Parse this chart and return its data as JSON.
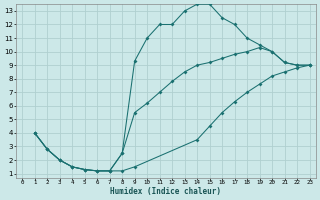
{
  "xlabel": "Humidex (Indice chaleur)",
  "xlim": [
    -0.5,
    23.5
  ],
  "ylim": [
    0.7,
    13.5
  ],
  "xticks": [
    0,
    1,
    2,
    3,
    4,
    5,
    6,
    7,
    8,
    9,
    10,
    11,
    12,
    13,
    14,
    15,
    16,
    17,
    18,
    19,
    20,
    21,
    22,
    23
  ],
  "yticks": [
    1,
    2,
    3,
    4,
    5,
    6,
    7,
    8,
    9,
    10,
    11,
    12,
    13
  ],
  "bg_color": "#cce8e8",
  "grid_color": "#b0d0d0",
  "line_color": "#1a7070",
  "curve1_x": [
    1,
    2,
    3,
    4,
    5,
    6,
    7,
    8,
    9,
    10,
    11,
    12,
    13,
    14,
    15,
    16,
    17,
    18,
    19,
    20,
    21,
    22,
    23
  ],
  "curve1_y": [
    4.0,
    2.8,
    2.0,
    1.5,
    1.3,
    1.2,
    1.2,
    2.5,
    9.3,
    11.0,
    12.0,
    12.0,
    13.0,
    13.5,
    13.5,
    12.5,
    12.0,
    11.0,
    10.5,
    10.0,
    9.2,
    9.0,
    9.0
  ],
  "curve2_x": [
    1,
    2,
    3,
    4,
    5,
    6,
    7,
    8,
    9,
    10,
    11,
    12,
    13,
    14,
    15,
    16,
    17,
    18,
    19,
    20,
    21,
    22,
    23
  ],
  "curve2_y": [
    4.0,
    2.8,
    2.0,
    1.5,
    1.3,
    1.2,
    1.2,
    2.5,
    5.5,
    6.2,
    7.0,
    7.8,
    8.5,
    9.0,
    9.2,
    9.5,
    9.8,
    10.0,
    10.3,
    10.0,
    9.2,
    9.0,
    9.0
  ],
  "curve3_x": [
    1,
    2,
    3,
    4,
    5,
    6,
    7,
    8,
    9,
    14,
    15,
    16,
    17,
    18,
    19,
    20,
    21,
    22,
    23
  ],
  "curve3_y": [
    4.0,
    2.8,
    2.0,
    1.5,
    1.3,
    1.2,
    1.2,
    1.2,
    1.5,
    3.5,
    4.5,
    5.5,
    6.3,
    7.0,
    7.6,
    8.2,
    8.5,
    8.8,
    9.0
  ]
}
